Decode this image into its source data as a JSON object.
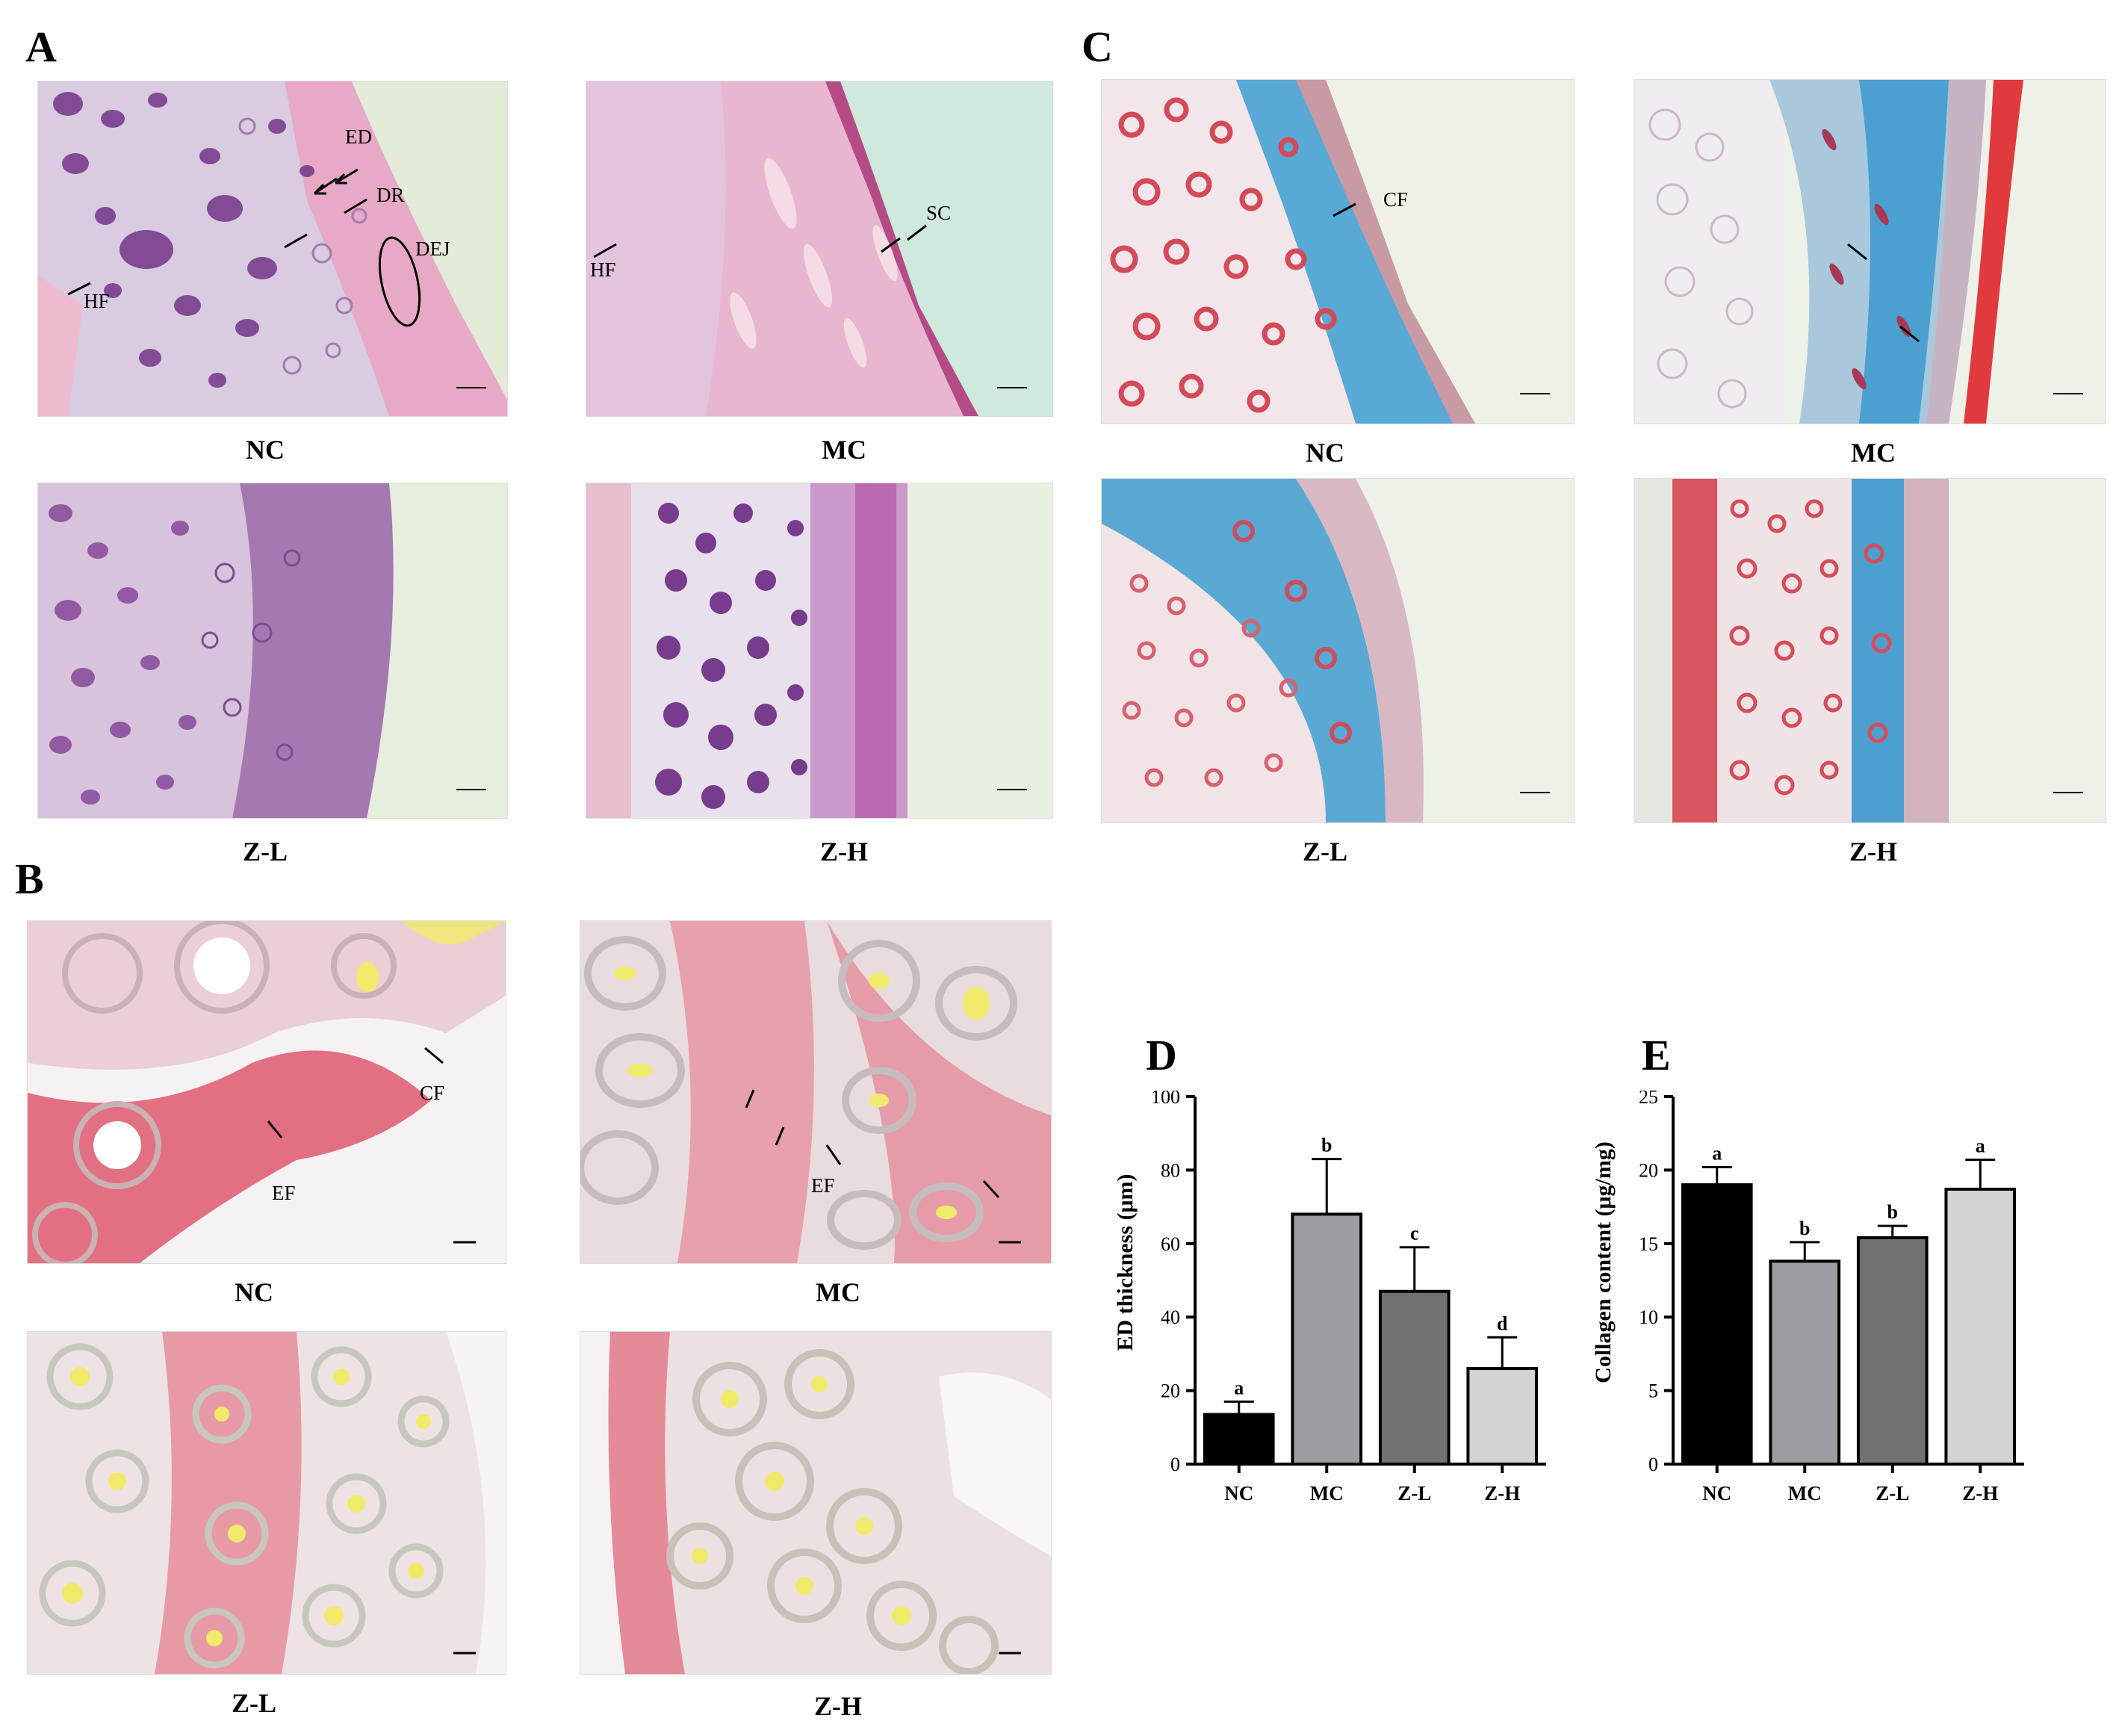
{
  "panels": {
    "A": {
      "letter": "A",
      "images": [
        {
          "caption": "NC",
          "labels": [
            "ED",
            "DR",
            "DEJ",
            "HF"
          ],
          "scale": "50 μm"
        },
        {
          "caption": "MC",
          "labels": [
            "SC",
            "HF"
          ],
          "scale": "50 μm"
        },
        {
          "caption": "Z-L",
          "labels": [],
          "scale": "50 μm"
        },
        {
          "caption": "Z-H",
          "labels": [],
          "scale": "50 μm"
        }
      ]
    },
    "B": {
      "letter": "B",
      "images": [
        {
          "caption": "NC",
          "labels": [
            "CF",
            "EF"
          ],
          "scale": "10 μm"
        },
        {
          "caption": "MC",
          "labels": [
            "EF"
          ],
          "scale": "10 μm"
        },
        {
          "caption": "Z-L",
          "labels": [],
          "scale": "10 μm"
        },
        {
          "caption": "Z-H",
          "labels": [],
          "scale": "10 μm"
        }
      ]
    },
    "C": {
      "letter": "C",
      "images": [
        {
          "caption": "NC",
          "labels": [
            "CF"
          ],
          "scale": "50 μm"
        },
        {
          "caption": "MC",
          "labels": [],
          "scale": "50 μm"
        },
        {
          "caption": "Z-L",
          "labels": [],
          "scale": "50 μm"
        },
        {
          "caption": "Z-H",
          "labels": [],
          "scale": "50 μm"
        }
      ]
    }
  },
  "colors": {
    "he_pink": "#e6aec8",
    "he_purple": "#7a3e8e",
    "masson_blue": "#4aa3d1",
    "masson_red": "#d9535c",
    "sirius_red": "#e0556a",
    "sirius_yellow": "#f2ea6a",
    "bar_nc": "#000000",
    "bar_mc": "#9c9ca2",
    "bar_zl": "#717171",
    "bar_zh": "#d3d3d3"
  },
  "chart_data": [
    {
      "letter": "D",
      "type": "bar",
      "categories": [
        "NC",
        "MC",
        "Z-L",
        "Z-H"
      ],
      "values": [
        13.5,
        68,
        47,
        26
      ],
      "errors": [
        3.5,
        15,
        12,
        8.5
      ],
      "sig_letters": [
        "a",
        "b",
        "c",
        "d"
      ],
      "ylabel": "ED thickness (μm)",
      "ylim": [
        0,
        100
      ],
      "yticks": [
        0,
        20,
        40,
        60,
        80,
        100
      ]
    },
    {
      "letter": "E",
      "type": "bar",
      "categories": [
        "NC",
        "MC",
        "Z-L",
        "Z-H"
      ],
      "values": [
        19,
        13.8,
        15.4,
        18.7
      ],
      "errors": [
        1.2,
        1.3,
        0.8,
        2.0
      ],
      "sig_letters": [
        "a",
        "b",
        "b",
        "a"
      ],
      "ylabel": "Collagen content (μg/mg)",
      "ylim": [
        0,
        25
      ],
      "yticks": [
        0,
        5,
        10,
        15,
        20,
        25
      ]
    }
  ]
}
